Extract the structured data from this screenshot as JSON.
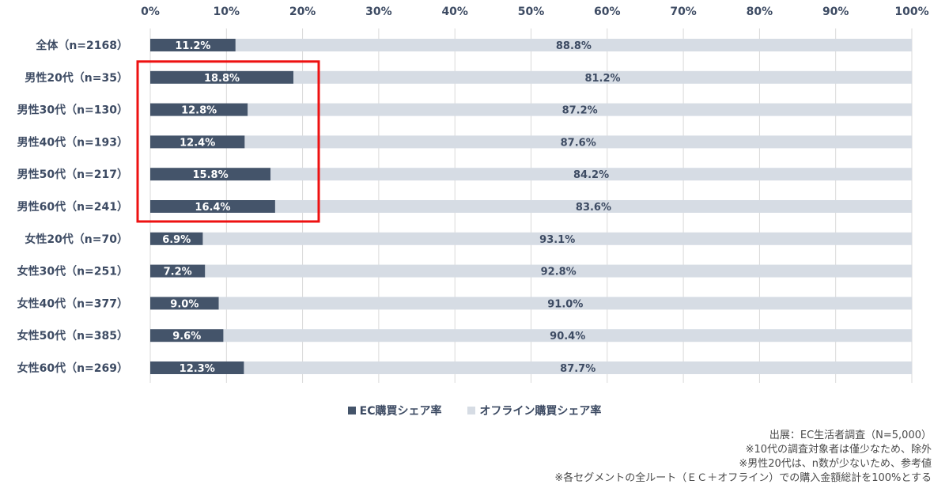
{
  "chart_data": {
    "type": "bar",
    "orientation": "horizontal",
    "stacked": true,
    "categories": [
      "全体（n=2168）",
      "男性20代（n=35）",
      "男性30代（n=130）",
      "男性40代（n=193）",
      "男性50代（n=217）",
      "男性60代（n=241）",
      "女性20代（n=70）",
      "女性30代（n=251）",
      "女性40代（n=377）",
      "女性50代（n=385）",
      "女性60代（n=269）"
    ],
    "series": [
      {
        "name": "EC購買シェア率",
        "color": "#44546a",
        "values": [
          11.2,
          18.8,
          12.8,
          12.4,
          15.8,
          16.4,
          6.9,
          7.2,
          9.0,
          9.6,
          12.3
        ],
        "labels": [
          "11.2%",
          "18.8%",
          "12.8%",
          "12.4%",
          "15.8%",
          "16.4%",
          "6.9%",
          "7.2%",
          "9.0%",
          "9.6%",
          "12.3%"
        ]
      },
      {
        "name": "オフライン購買シェア率",
        "color": "#d6dce4",
        "values": [
          88.8,
          81.2,
          87.2,
          87.6,
          84.2,
          83.6,
          93.1,
          92.8,
          91.0,
          90.4,
          87.7
        ],
        "labels": [
          "88.8%",
          "81.2%",
          "87.2%",
          "87.6%",
          "84.2%",
          "83.6%",
          "93.1%",
          "92.8%",
          "91.0%",
          "90.4%",
          "87.7%"
        ]
      }
    ],
    "xlim": [
      0,
      100
    ],
    "xticks": [
      0,
      10,
      20,
      30,
      40,
      50,
      60,
      70,
      80,
      90,
      100
    ],
    "xtick_labels": [
      "0%",
      "10%",
      "20%",
      "30%",
      "40%",
      "50%",
      "60%",
      "70%",
      "80%",
      "90%",
      "100%"
    ],
    "axis_position": "top",
    "grid": true,
    "legend_position": "bottom",
    "highlight": {
      "from_category": 1,
      "to_category": 5,
      "color": "#ee1111"
    }
  },
  "notes": [
    "出展：EC生活者調査（N=5,000）",
    "※10代の調査対象者は僅少なため、除外",
    "※男性20代は、n数が少ないため、参考値",
    "※各セグメントの全ルート（ＥＣ＋オフライン）での購入金額総計を100%とする"
  ]
}
